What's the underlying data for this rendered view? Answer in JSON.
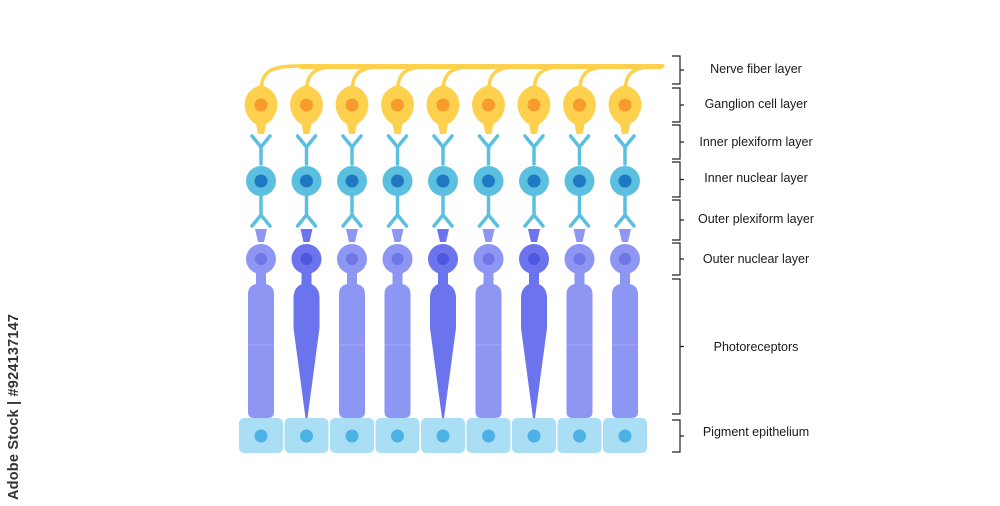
{
  "layers": [
    {
      "id": "nerve",
      "label": "Nerve fiber layer"
    },
    {
      "id": "ganglion",
      "label": "Ganglion cell layer"
    },
    {
      "id": "ipl",
      "label": "Inner plexiform layer"
    },
    {
      "id": "inl",
      "label": "Inner nuclear layer"
    },
    {
      "id": "opl",
      "label": "Outer plexiform layer"
    },
    {
      "id": "onl",
      "label": "Outer nuclear layer"
    },
    {
      "id": "photo",
      "label": "Photoreceptors"
    },
    {
      "id": "rpe",
      "label": "Pigment epithelium"
    }
  ],
  "columns": [
    "rod",
    "cone",
    "rod",
    "rod",
    "cone",
    "rod",
    "cone",
    "rod",
    "rod"
  ],
  "colors": {
    "ganglion": "#fdd04d",
    "ganglion_nucleus": "#f79b2e",
    "bipolar": "#5bbfe0",
    "bipolar_nucleus": "#1f78c1",
    "rod": "#8e96f3",
    "rod_nucleus": "#6f76e6",
    "cone": "#6b74ec",
    "cone_nucleus": "#4f57e0",
    "epithelium": "#a9def5",
    "epithelium_nucleus": "#4cb2e6",
    "bracket": "#222222"
  },
  "watermark": "Adobe Stock | #924137147"
}
